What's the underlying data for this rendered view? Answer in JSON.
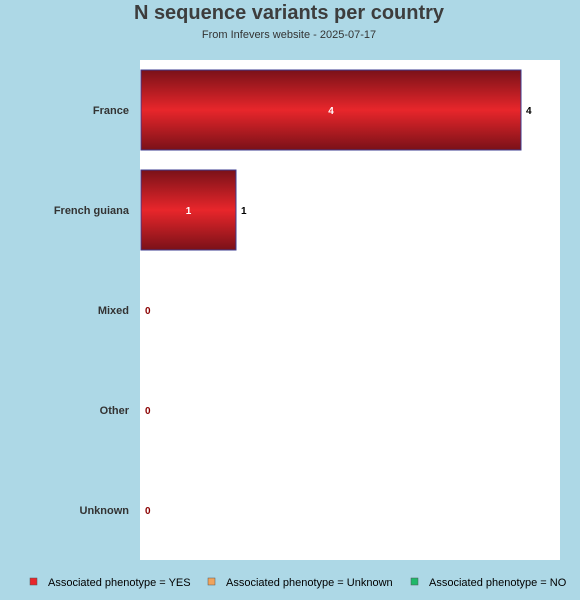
{
  "chart_data": {
    "type": "bar",
    "orientation": "horizontal",
    "title": "N sequence variants per country",
    "subtitle": "From Infevers website - 2025-07-17",
    "categories": [
      "France",
      "French guiana",
      "Mixed",
      "Other",
      "Unknown"
    ],
    "series": [
      {
        "name": "Associated phenotype = YES",
        "color": "#e8262b",
        "values": [
          4,
          1,
          0,
          0,
          0
        ]
      },
      {
        "name": "Associated phenotype = Unknown",
        "color": "#f0a35c",
        "values": [
          0,
          0,
          0,
          0,
          0
        ]
      },
      {
        "name": "Associated phenotype = NO",
        "color": "#1fb86a",
        "values": [
          0,
          0,
          0,
          0,
          0
        ]
      }
    ],
    "totals": [
      4,
      1,
      0,
      0,
      0
    ],
    "xlim": [
      0,
      4.4
    ],
    "legend_position": "bottom",
    "grid": false,
    "colors": {
      "background": "#add8e6",
      "plot_background": "#ffffff",
      "bar_edge": "#7a1118",
      "bar_outline": "#3b3b8f",
      "zero_label": "#8b0000"
    }
  }
}
